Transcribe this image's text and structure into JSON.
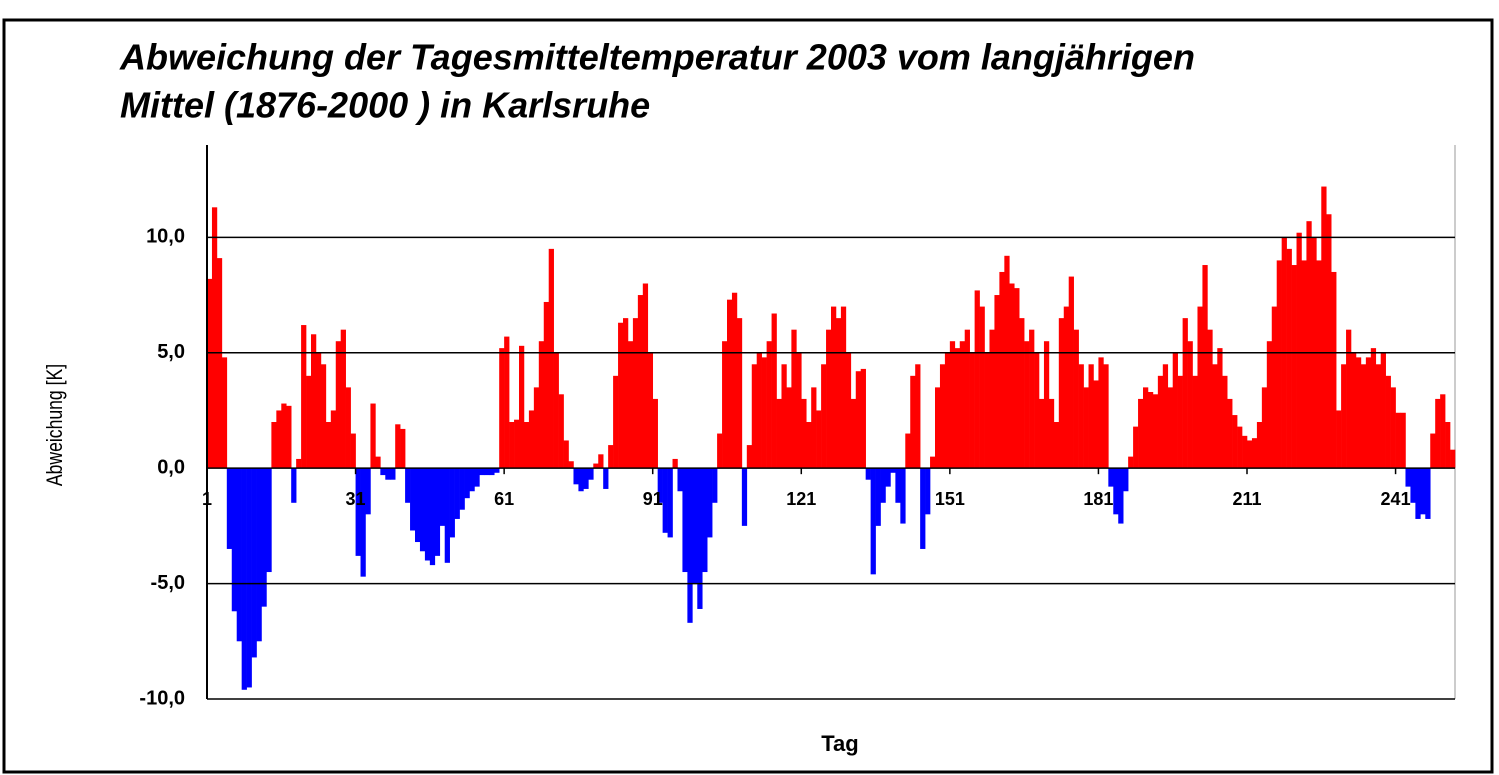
{
  "chart_data": {
    "type": "bar",
    "title": [
      "Abweichung der Tagesmitteltemperatur 2003 vom langjährigen",
      "Mittel (1876-2000 ) in Karlsruhe"
    ],
    "x_label": "Tag",
    "y_label": "Abweichung [K]",
    "positive_color": "#ff0000",
    "negative_color": "#0000ff",
    "grid": true,
    "xlim": [
      1,
      253
    ],
    "xticks": [
      1,
      31,
      61,
      91,
      121,
      151,
      181,
      211,
      241
    ],
    "ylim": [
      -10,
      14
    ],
    "yticks": [
      {
        "value": -10,
        "label": "-10,0"
      },
      {
        "value": -5,
        "label": "-5,0"
      },
      {
        "value": 0,
        "label": "0,0"
      },
      {
        "value": 5,
        "label": "5,0"
      },
      {
        "value": 10,
        "label": "10,0"
      }
    ],
    "x": [
      1,
      2,
      3,
      4,
      5,
      6,
      7,
      8,
      9,
      10,
      11,
      12,
      13,
      14,
      15,
      16,
      17,
      18,
      19,
      20,
      21,
      22,
      23,
      24,
      25,
      26,
      27,
      28,
      29,
      30,
      31,
      32,
      33,
      34,
      35,
      36,
      37,
      38,
      39,
      40,
      41,
      42,
      43,
      44,
      45,
      46,
      47,
      48,
      49,
      50,
      51,
      52,
      53,
      54,
      55,
      56,
      57,
      58,
      59,
      60,
      61,
      62,
      63,
      64,
      65,
      66,
      67,
      68,
      69,
      70,
      71,
      72,
      73,
      74,
      75,
      76,
      77,
      78,
      79,
      80,
      81,
      82,
      83,
      84,
      85,
      86,
      87,
      88,
      89,
      90,
      91,
      92,
      93,
      94,
      95,
      96,
      97,
      98,
      99,
      100,
      101,
      102,
      103,
      104,
      105,
      106,
      107,
      108,
      109,
      110,
      111,
      112,
      113,
      114,
      115,
      116,
      117,
      118,
      119,
      120,
      121,
      122,
      123,
      124,
      125,
      126,
      127,
      128,
      129,
      130,
      131,
      132,
      133,
      134,
      135,
      136,
      137,
      138,
      139,
      140,
      141,
      142,
      143,
      144,
      145,
      146,
      147,
      148,
      149,
      150,
      151,
      152,
      153,
      154,
      155,
      156,
      157,
      158,
      159,
      160,
      161,
      162,
      163,
      164,
      165,
      166,
      167,
      168,
      169,
      170,
      171,
      172,
      173,
      174,
      175,
      176,
      177,
      178,
      179,
      180,
      181,
      182,
      183,
      184,
      185,
      186,
      187,
      188,
      189,
      190,
      191,
      192,
      193,
      194,
      195,
      196,
      197,
      198,
      199,
      200,
      201,
      202,
      203,
      204,
      205,
      206,
      207,
      208,
      209,
      210,
      211,
      212,
      213,
      214,
      215,
      216,
      217,
      218,
      219,
      220,
      221,
      222,
      223,
      224,
      225,
      226,
      227,
      228,
      229,
      230,
      231,
      232,
      233,
      234,
      235,
      236,
      237,
      238,
      239,
      240,
      241,
      242,
      243,
      244,
      245,
      246,
      247,
      248,
      249,
      250,
      251,
      252
    ],
    "values": [
      8.2,
      11.3,
      9.1,
      4.8,
      -3.5,
      -6.2,
      -7.5,
      -9.6,
      -9.5,
      -8.2,
      -7.5,
      -6.0,
      -4.5,
      2.0,
      2.5,
      2.8,
      2.7,
      -1.5,
      0.4,
      6.2,
      4.0,
      5.8,
      5.0,
      4.5,
      2.0,
      2.5,
      5.5,
      6.0,
      3.5,
      1.5,
      -3.8,
      -4.7,
      -2.0,
      2.8,
      0.5,
      -0.3,
      -0.5,
      -0.5,
      1.9,
      1.7,
      -1.5,
      -2.7,
      -3.2,
      -3.6,
      -4.0,
      -4.2,
      -3.8,
      -2.5,
      -4.1,
      -3.0,
      -2.2,
      -1.8,
      -1.3,
      -1.0,
      -0.8,
      -0.3,
      -0.3,
      -0.3,
      -0.2,
      5.2,
      5.7,
      2.0,
      2.1,
      5.3,
      2.0,
      2.5,
      3.5,
      5.5,
      7.2,
      9.5,
      5.0,
      3.2,
      1.2,
      0.3,
      -0.7,
      -1.0,
      -0.9,
      -0.5,
      0.2,
      0.6,
      -0.9,
      1.0,
      4.0,
      6.3,
      6.5,
      5.5,
      6.5,
      7.5,
      8.0,
      5.0,
      3.0,
      -1.5,
      -2.8,
      -3.0,
      0.4,
      -1.0,
      -4.5,
      -6.7,
      -5.0,
      -6.1,
      -4.5,
      -3.0,
      -1.5,
      1.5,
      5.5,
      7.3,
      7.6,
      6.5,
      -2.5,
      1.0,
      4.5,
      5.0,
      4.8,
      5.5,
      6.7,
      3.0,
      4.5,
      3.5,
      6.0,
      5.0,
      3.0,
      2.0,
      3.5,
      2.5,
      4.5,
      6.0,
      7.0,
      6.5,
      7.0,
      5.0,
      3.0,
      4.2,
      4.3,
      -0.5,
      -4.6,
      -2.5,
      -1.5,
      -0.8,
      -0.2,
      -1.5,
      -2.4,
      1.5,
      4.0,
      4.5,
      -3.5,
      -2.0,
      0.5,
      3.5,
      4.5,
      5.0,
      5.5,
      5.2,
      5.5,
      6.0,
      5.0,
      7.7,
      7.0,
      5.0,
      6.0,
      7.5,
      8.5,
      9.2,
      8.0,
      7.8,
      6.5,
      5.5,
      6.0,
      5.0,
      3.0,
      5.5,
      3.0,
      2.0,
      6.5,
      7.0,
      8.3,
      6.0,
      4.5,
      3.5,
      4.5,
      3.8,
      4.8,
      4.5,
      -0.8,
      -2.0,
      -2.4,
      -1.0,
      0.5,
      1.8,
      3.0,
      3.5,
      3.3,
      3.2,
      4.0,
      4.5,
      3.5,
      5.0,
      4.0,
      6.5,
      5.5,
      4.0,
      7.0,
      8.8,
      6.0,
      4.5,
      5.2,
      4.0,
      3.0,
      2.3,
      1.8,
      1.4,
      1.2,
      1.3,
      2.0,
      3.5,
      5.5,
      7.0,
      9.0,
      10.0,
      9.5,
      8.8,
      10.2,
      9.0,
      10.7,
      10.0,
      9.0,
      12.2,
      11.0,
      8.5,
      2.5,
      4.5,
      6.0,
      5.0,
      4.8,
      4.5,
      4.8,
      5.2,
      4.5,
      5.0,
      4.0,
      3.5,
      2.4,
      2.4,
      -0.8,
      -1.5,
      -2.2,
      -2.0,
      -2.2,
      1.5,
      3.0,
      3.2,
      2.0,
      0.8
    ]
  }
}
